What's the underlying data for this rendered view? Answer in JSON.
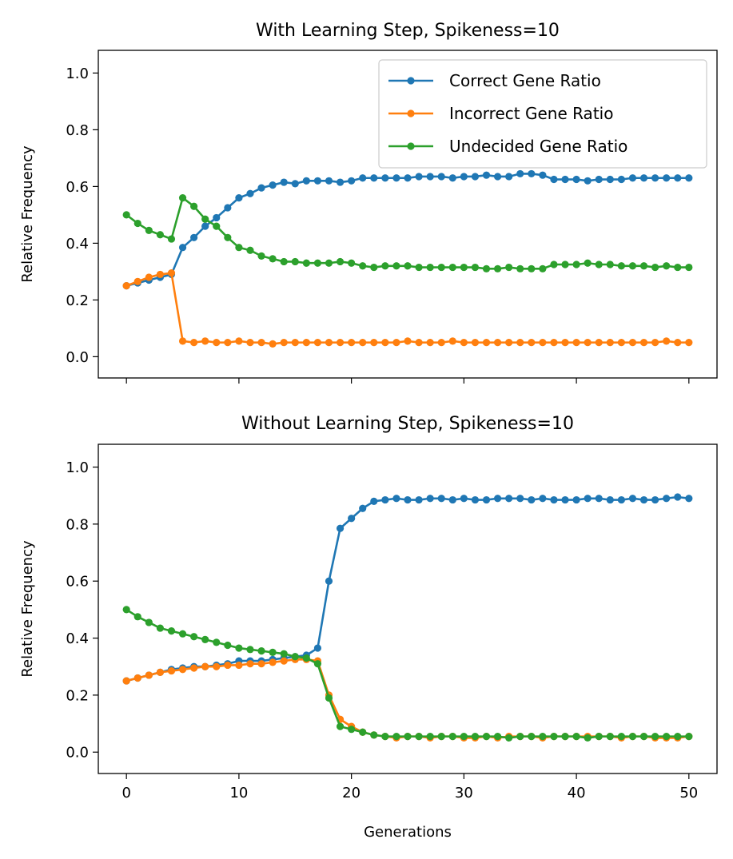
{
  "chart_data": [
    {
      "type": "line",
      "title": "With Learning Step, Spikeness=10",
      "xlabel": "",
      "ylabel": "Relative Frequency",
      "xlim": [
        -2.5,
        52.5
      ],
      "ylim": [
        -0.075,
        1.08
      ],
      "xticks": [
        0,
        10,
        20,
        30,
        40,
        50
      ],
      "yticks": [
        0.0,
        0.2,
        0.4,
        0.6,
        0.8,
        1.0
      ],
      "show_xtick_labels": false,
      "grid": false,
      "legend": "top-right",
      "x": [
        0,
        1,
        2,
        3,
        4,
        5,
        6,
        7,
        8,
        9,
        10,
        11,
        12,
        13,
        14,
        15,
        16,
        17,
        18,
        19,
        20,
        21,
        22,
        23,
        24,
        25,
        26,
        27,
        28,
        29,
        30,
        31,
        32,
        33,
        34,
        35,
        36,
        37,
        38,
        39,
        40,
        41,
        42,
        43,
        44,
        45,
        46,
        47,
        48,
        49,
        50
      ],
      "series": [
        {
          "name": "Correct Gene Ratio",
          "color": "#1f77b4",
          "values": [
            0.25,
            0.26,
            0.27,
            0.28,
            0.29,
            0.385,
            0.42,
            0.46,
            0.49,
            0.525,
            0.56,
            0.575,
            0.595,
            0.605,
            0.615,
            0.61,
            0.62,
            0.62,
            0.62,
            0.615,
            0.62,
            0.63,
            0.63,
            0.63,
            0.63,
            0.63,
            0.635,
            0.635,
            0.635,
            0.63,
            0.635,
            0.635,
            0.64,
            0.635,
            0.635,
            0.645,
            0.645,
            0.64,
            0.625,
            0.625,
            0.625,
            0.62,
            0.625,
            0.625,
            0.625,
            0.63,
            0.63,
            0.63,
            0.63,
            0.63,
            0.63
          ]
        },
        {
          "name": "Incorrect Gene Ratio",
          "color": "#ff7f0e",
          "values": [
            0.25,
            0.265,
            0.28,
            0.29,
            0.295,
            0.055,
            0.05,
            0.055,
            0.05,
            0.05,
            0.055,
            0.05,
            0.05,
            0.045,
            0.05,
            0.05,
            0.05,
            0.05,
            0.05,
            0.05,
            0.05,
            0.05,
            0.05,
            0.05,
            0.05,
            0.055,
            0.05,
            0.05,
            0.05,
            0.055,
            0.05,
            0.05,
            0.05,
            0.05,
            0.05,
            0.05,
            0.05,
            0.05,
            0.05,
            0.05,
            0.05,
            0.05,
            0.05,
            0.05,
            0.05,
            0.05,
            0.05,
            0.05,
            0.055,
            0.05,
            0.05
          ]
        },
        {
          "name": "Undecided Gene Ratio",
          "color": "#2ca02c",
          "values": [
            0.5,
            0.47,
            0.445,
            0.43,
            0.415,
            0.56,
            0.53,
            0.485,
            0.46,
            0.42,
            0.385,
            0.375,
            0.355,
            0.345,
            0.335,
            0.335,
            0.33,
            0.33,
            0.33,
            0.335,
            0.33,
            0.32,
            0.315,
            0.32,
            0.32,
            0.32,
            0.315,
            0.315,
            0.315,
            0.315,
            0.315,
            0.315,
            0.31,
            0.31,
            0.315,
            0.31,
            0.31,
            0.31,
            0.325,
            0.325,
            0.325,
            0.33,
            0.325,
            0.325,
            0.32,
            0.32,
            0.32,
            0.315,
            0.32,
            0.315,
            0.315
          ]
        }
      ]
    },
    {
      "type": "line",
      "title": "Without Learning Step, Spikeness=10",
      "xlabel": "Generations",
      "ylabel": "Relative Frequency",
      "xlim": [
        -2.5,
        52.5
      ],
      "ylim": [
        -0.075,
        1.08
      ],
      "xticks": [
        0,
        10,
        20,
        30,
        40,
        50
      ],
      "yticks": [
        0.0,
        0.2,
        0.4,
        0.6,
        0.8,
        1.0
      ],
      "show_xtick_labels": true,
      "grid": false,
      "x": [
        0,
        1,
        2,
        3,
        4,
        5,
        6,
        7,
        8,
        9,
        10,
        11,
        12,
        13,
        14,
        15,
        16,
        17,
        18,
        19,
        20,
        21,
        22,
        23,
        24,
        25,
        26,
        27,
        28,
        29,
        30,
        31,
        32,
        33,
        34,
        35,
        36,
        37,
        38,
        39,
        40,
        41,
        42,
        43,
        44,
        45,
        46,
        47,
        48,
        49,
        50
      ],
      "series": [
        {
          "name": "Correct Gene Ratio",
          "color": "#1f77b4",
          "values": [
            0.25,
            0.26,
            0.27,
            0.28,
            0.29,
            0.295,
            0.3,
            0.3,
            0.305,
            0.31,
            0.32,
            0.32,
            0.32,
            0.325,
            0.33,
            0.335,
            0.34,
            0.365,
            0.6,
            0.785,
            0.82,
            0.855,
            0.88,
            0.885,
            0.89,
            0.885,
            0.885,
            0.89,
            0.89,
            0.885,
            0.89,
            0.885,
            0.885,
            0.89,
            0.89,
            0.89,
            0.885,
            0.89,
            0.885,
            0.885,
            0.885,
            0.89,
            0.89,
            0.885,
            0.885,
            0.89,
            0.885,
            0.885,
            0.89,
            0.895,
            0.89
          ]
        },
        {
          "name": "Incorrect Gene Ratio",
          "color": "#ff7f0e",
          "values": [
            0.25,
            0.26,
            0.27,
            0.28,
            0.285,
            0.29,
            0.295,
            0.3,
            0.3,
            0.305,
            0.305,
            0.31,
            0.31,
            0.315,
            0.32,
            0.325,
            0.325,
            0.32,
            0.2,
            0.115,
            0.09,
            0.07,
            0.06,
            0.055,
            0.05,
            0.055,
            0.055,
            0.05,
            0.055,
            0.055,
            0.05,
            0.05,
            0.055,
            0.05,
            0.055,
            0.055,
            0.055,
            0.05,
            0.055,
            0.055,
            0.055,
            0.055,
            0.055,
            0.055,
            0.05,
            0.055,
            0.055,
            0.05,
            0.05,
            0.05,
            0.055
          ]
        },
        {
          "name": "Undecided Gene Ratio",
          "color": "#2ca02c",
          "values": [
            0.5,
            0.475,
            0.455,
            0.435,
            0.425,
            0.415,
            0.405,
            0.395,
            0.385,
            0.375,
            0.365,
            0.36,
            0.355,
            0.35,
            0.345,
            0.335,
            0.33,
            0.31,
            0.19,
            0.09,
            0.08,
            0.07,
            0.06,
            0.055,
            0.055,
            0.055,
            0.055,
            0.055,
            0.055,
            0.055,
            0.055,
            0.055,
            0.055,
            0.055,
            0.05,
            0.055,
            0.055,
            0.055,
            0.055,
            0.055,
            0.055,
            0.05,
            0.055,
            0.055,
            0.055,
            0.055,
            0.055,
            0.055,
            0.055,
            0.055,
            0.055
          ]
        }
      ]
    }
  ]
}
